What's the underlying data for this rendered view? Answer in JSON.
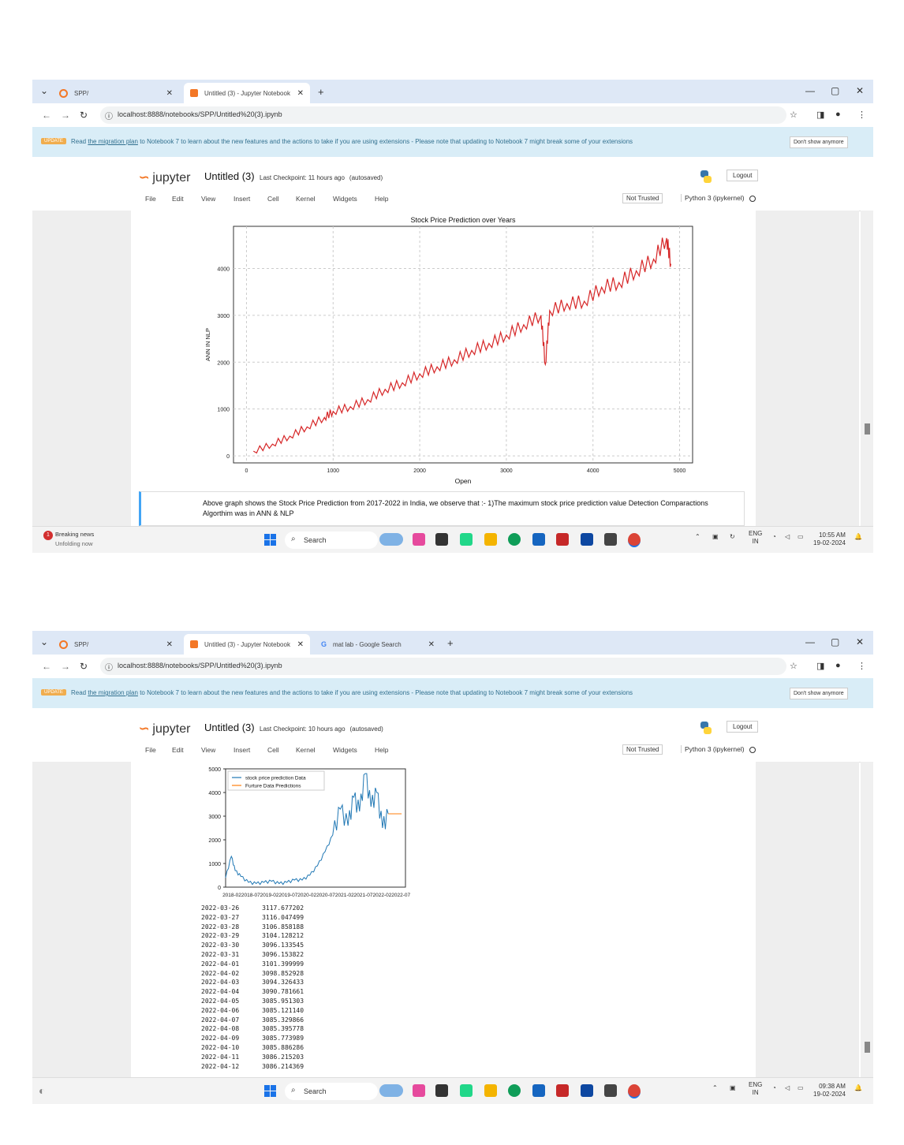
{
  "screenshots": [
    {
      "tabs": [
        {
          "label": "SPP/"
        },
        {
          "label": "Untitled (3) - Jupyter Notebook"
        }
      ],
      "url": "localhost:8888/notebooks/SPP/Untitled%20(3).ipynb",
      "banner": {
        "badge": "UPDATE",
        "pre": "Read",
        "link": "the migration plan",
        "post": "to Notebook 7 to learn about the new features and the actions to take if you are using extensions - Please note that updating to Notebook 7 might break some of your extensions",
        "dismiss": "Don't show anymore"
      },
      "notebook": {
        "logo": "jupyter",
        "title": "Untitled (3)",
        "checkpoint": "Last Checkpoint: 11 hours ago",
        "autosave": "(autosaved)",
        "logout": "Logout",
        "menu": [
          "File",
          "Edit",
          "View",
          "Insert",
          "Cell",
          "Kernel",
          "Widgets",
          "Help"
        ],
        "trust": "Not Trusted",
        "kernel": "Python 3 (ipykernel)"
      },
      "markdown": "Above graph shows the Stock Price Prediction from 2017-2022 in India, we observe that :- 1)The maximum stock price prediction value Detection Comparactions Algorthim was in ANN & NLP",
      "taskbar": {
        "news_title": "Breaking news",
        "news_sub": "Unfolding now",
        "search": "Search",
        "lang": "ENG",
        "region": "IN",
        "time": "10:55 AM",
        "date": "19-02-2024"
      }
    },
    {
      "tabs": [
        {
          "label": "SPP/"
        },
        {
          "label": "Untitled (3) - Jupyter Notebook"
        },
        {
          "label": "mat lab - Google Search"
        }
      ],
      "url": "localhost:8888/notebooks/SPP/Untitled%20(3).ipynb",
      "banner": {
        "badge": "UPDATE",
        "pre": "Read",
        "link": "the migration plan",
        "post": "to Notebook 7 to learn about the new features and the actions to take if you are using extensions - Please note that updating to Notebook 7 might break some of your extensions",
        "dismiss": "Don't show anymore"
      },
      "notebook": {
        "logo": "jupyter",
        "title": "Untitled (3)",
        "checkpoint": "Last Checkpoint: 10 hours ago",
        "autosave": "(autosaved)",
        "logout": "Logout",
        "menu": [
          "File",
          "Edit",
          "View",
          "Insert",
          "Cell",
          "Kernel",
          "Widgets",
          "Help"
        ],
        "trust": "Not Trusted",
        "kernel": "Python 3 (ipykernel)"
      },
      "series_output": [
        {
          "date": "2022-03-26",
          "value": "3117.677202"
        },
        {
          "date": "2022-03-27",
          "value": "3116.047499"
        },
        {
          "date": "2022-03-28",
          "value": "3106.858188"
        },
        {
          "date": "2022-03-29",
          "value": "3104.128212"
        },
        {
          "date": "2022-03-30",
          "value": "3096.133545"
        },
        {
          "date": "2022-03-31",
          "value": "3096.153822"
        },
        {
          "date": "2022-04-01",
          "value": "3101.399999"
        },
        {
          "date": "2022-04-02",
          "value": "3098.852928"
        },
        {
          "date": "2022-04-03",
          "value": "3094.326433"
        },
        {
          "date": "2022-04-04",
          "value": "3090.781661"
        },
        {
          "date": "2022-04-05",
          "value": "3085.951303"
        },
        {
          "date": "2022-04-06",
          "value": "3085.121140"
        },
        {
          "date": "2022-04-07",
          "value": "3085.329866"
        },
        {
          "date": "2022-04-08",
          "value": "3085.395778"
        },
        {
          "date": "2022-04-09",
          "value": "3085.773989"
        },
        {
          "date": "2022-04-10",
          "value": "3085.886286"
        },
        {
          "date": "2022-04-11",
          "value": "3086.215203"
        },
        {
          "date": "2022-04-12",
          "value": "3086.214369"
        }
      ],
      "taskbar": {
        "search": "Search",
        "lang": "ENG",
        "region": "IN",
        "time": "09:38 AM",
        "date": "19-02-2024"
      }
    }
  ],
  "colors": {
    "tabbar": "#dee8f6",
    "banner": "#d9edf7",
    "prediction_line": "#d62728",
    "series_line": "#1f77b4",
    "future_line": "#ff7f0e"
  },
  "chart_data": [
    {
      "type": "line",
      "title": "Stock Price Prediction  over Years",
      "xlabel": "Open",
      "ylabel": "ANN IN NLP",
      "xlim": [
        -150,
        5150
      ],
      "ylim": [
        -150,
        4900
      ],
      "xticks": [
        0,
        1000,
        2000,
        3000,
        4000,
        5000
      ],
      "yticks": [
        0,
        1000,
        2000,
        3000,
        4000
      ],
      "grid": true,
      "series": [
        {
          "name": "prediction",
          "points": [
            [
              80,
              100
            ],
            [
              300,
              250
            ],
            [
              500,
              420
            ],
            [
              700,
              620
            ],
            [
              900,
              820
            ],
            [
              1000,
              950
            ],
            [
              1200,
              1050
            ],
            [
              1400,
              1200
            ],
            [
              1600,
              1420
            ],
            [
              1800,
              1560
            ],
            [
              2000,
              1750
            ],
            [
              2200,
              1900
            ],
            [
              2400,
              2050
            ],
            [
              2600,
              2250
            ],
            [
              2800,
              2400
            ],
            [
              3000,
              2580
            ],
            [
              3200,
              2800
            ],
            [
              3400,
              3000
            ],
            [
              3450,
              1950
            ],
            [
              3500,
              3100
            ],
            [
              3700,
              3250
            ],
            [
              3900,
              3300
            ],
            [
              4100,
              3600
            ],
            [
              4300,
              3700
            ],
            [
              4500,
              3950
            ],
            [
              4700,
              4200
            ],
            [
              4850,
              4650
            ],
            [
              4900,
              4100
            ]
          ]
        }
      ]
    },
    {
      "type": "line",
      "title": "",
      "xlabel": "",
      "ylabel": "",
      "ylim": [
        0,
        5000
      ],
      "yticks": [
        0,
        1000,
        2000,
        3000,
        4000,
        5000
      ],
      "xtick_labels": [
        "2018-02",
        "2018-07",
        "2019-02",
        "2019-07",
        "2020-02",
        "2020-07",
        "2021-02",
        "2021-07",
        "2022-02",
        "2022-07"
      ],
      "grid": false,
      "legend": "top-left",
      "series": [
        {
          "name": "stock price prediction  Data",
          "points": [
            [
              0,
              400
            ],
            [
              0.3,
              1300
            ],
            [
              0.5,
              700
            ],
            [
              0.8,
              450
            ],
            [
              1.2,
              200
            ],
            [
              1.6,
              150
            ],
            [
              2.0,
              200
            ],
            [
              2.4,
              250
            ],
            [
              2.8,
              150
            ],
            [
              3.2,
              200
            ],
            [
              3.6,
              300
            ],
            [
              4.0,
              300
            ],
            [
              4.4,
              500
            ],
            [
              4.8,
              900
            ],
            [
              5.2,
              1500
            ],
            [
              5.6,
              2200
            ],
            [
              6.0,
              3300
            ],
            [
              6.4,
              2600
            ],
            [
              6.7,
              3800
            ],
            [
              7.0,
              3200
            ],
            [
              7.3,
              4800
            ],
            [
              7.6,
              3400
            ],
            [
              7.9,
              4000
            ],
            [
              8.2,
              2500
            ],
            [
              8.5,
              3100
            ]
          ]
        },
        {
          "name": "Furture Data Predictions",
          "points": [
            [
              8.5,
              3100
            ],
            [
              9.2,
              3100
            ]
          ]
        }
      ]
    }
  ]
}
